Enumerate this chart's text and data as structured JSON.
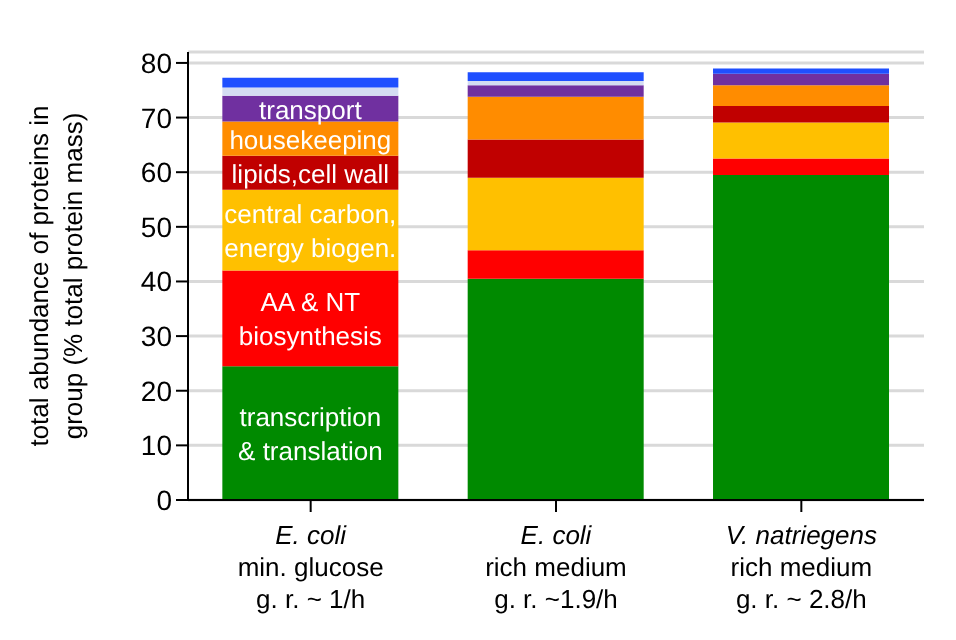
{
  "chart_data": {
    "type": "bar",
    "stacked": true,
    "ylabel": "total abundance of proteins in\ngroup (% total protein mass)",
    "categories": [
      "E. coli\nmin. glucose\ng. r. ~ 1/h",
      "E. coli\nrich medium\ng. r. ~1.9/h",
      "V. natriegens\nrich medium\ng. r. ~ 2.8/h"
    ],
    "series": [
      {
        "name": "transcription\n& translation",
        "color": "#008a00",
        "values": [
          24.5,
          40.5,
          59.5
        ]
      },
      {
        "name": "AA & NT\nbiosynthesis",
        "color": "#ff0000",
        "values": [
          17.5,
          5.2,
          3
        ]
      },
      {
        "name": "central carbon,\nenergy biogen.",
        "color": "#ffc000",
        "values": [
          14.8,
          13.3,
          6.6
        ]
      },
      {
        "name": "lipids,cell wall",
        "color": "#c00000",
        "values": [
          6.2,
          7,
          3
        ]
      },
      {
        "name": "housekeeping",
        "color": "#ff8c00",
        "values": [
          6.3,
          7.8,
          3.8
        ]
      },
      {
        "name": "transport",
        "color": "#7030a0",
        "values": [
          4.7,
          2.1,
          2.1
        ]
      },
      {
        "color": "#d4dcf2",
        "values": [
          1.5,
          0.8,
          null
        ]
      },
      {
        "color": "#1f4fff",
        "values": [
          1.8,
          1.6,
          1
        ]
      }
    ],
    "ylim": [
      0,
      82
    ],
    "yticks": [
      0,
      10,
      20,
      30,
      40,
      50,
      60,
      70,
      80
    ],
    "grid": "y",
    "legend": false
  }
}
